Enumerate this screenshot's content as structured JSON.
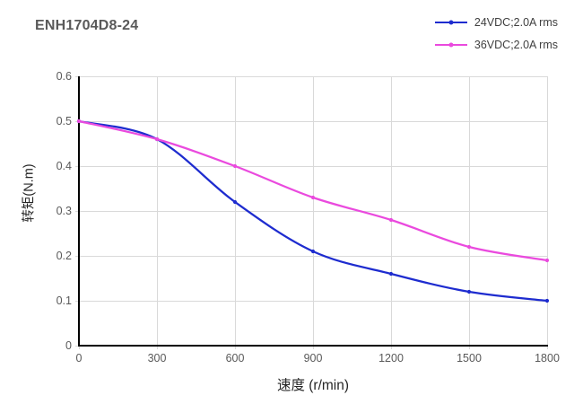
{
  "chart": {
    "title": "ENH1704D8-24"
  },
  "chart_data": {
    "type": "line",
    "title": "ENH1704D8-24",
    "xlabel": "速度 (r/min)",
    "ylabel": "转矩(N.m)",
    "x": [
      0,
      300,
      600,
      900,
      1200,
      1500,
      1800
    ],
    "series": [
      {
        "name": "24VDC;2.0A rms",
        "color": "#1e2ccf",
        "values": [
          0.5,
          0.46,
          0.32,
          0.21,
          0.16,
          0.12,
          0.1
        ]
      },
      {
        "name": "36VDC;2.0A rms",
        "color": "#ea4ade",
        "values": [
          0.5,
          0.46,
          0.4,
          0.33,
          0.28,
          0.22,
          0.19
        ]
      }
    ],
    "xlim": [
      0,
      1800
    ],
    "ylim": [
      0,
      0.6
    ],
    "xticks": [
      0,
      300,
      600,
      900,
      1200,
      1500,
      1800
    ],
    "yticks": [
      0,
      0.1,
      0.2,
      0.3,
      0.4,
      0.5,
      0.6
    ],
    "grid": true,
    "legend_position": "top-right",
    "smooth": true,
    "colors": {
      "grid": "#d9d9d9",
      "axis": "#000000",
      "tick_label": "#595959",
      "title": "#595959",
      "axis_label": "#262626",
      "legend_text": "#404040",
      "background": "#ffffff"
    }
  }
}
